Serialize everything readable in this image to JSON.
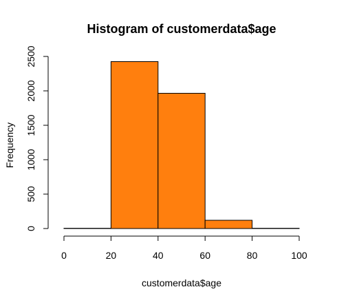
{
  "chart_data": {
    "type": "bar",
    "title": "Histogram of customerdata$age",
    "xlabel": "customerdata$age",
    "ylabel": "Frequency",
    "bins": [
      {
        "start": 0,
        "end": 20,
        "count": 4
      },
      {
        "start": 20,
        "end": 40,
        "count": 2425
      },
      {
        "start": 40,
        "end": 60,
        "count": 1965
      },
      {
        "start": 60,
        "end": 80,
        "count": 120
      },
      {
        "start": 80,
        "end": 100,
        "count": 4
      }
    ],
    "xlim": [
      0,
      100
    ],
    "ylim": [
      0,
      2500
    ],
    "xticks": [
      0,
      20,
      40,
      60,
      80,
      100
    ],
    "yticks": [
      0,
      500,
      1000,
      1500,
      2000,
      2500
    ],
    "grid": false,
    "colors": {
      "bar_fill": "#ff7f0e",
      "bar_stroke": "#000000",
      "axis": "#000000",
      "text": "#000000",
      "background": "#ffffff"
    }
  }
}
